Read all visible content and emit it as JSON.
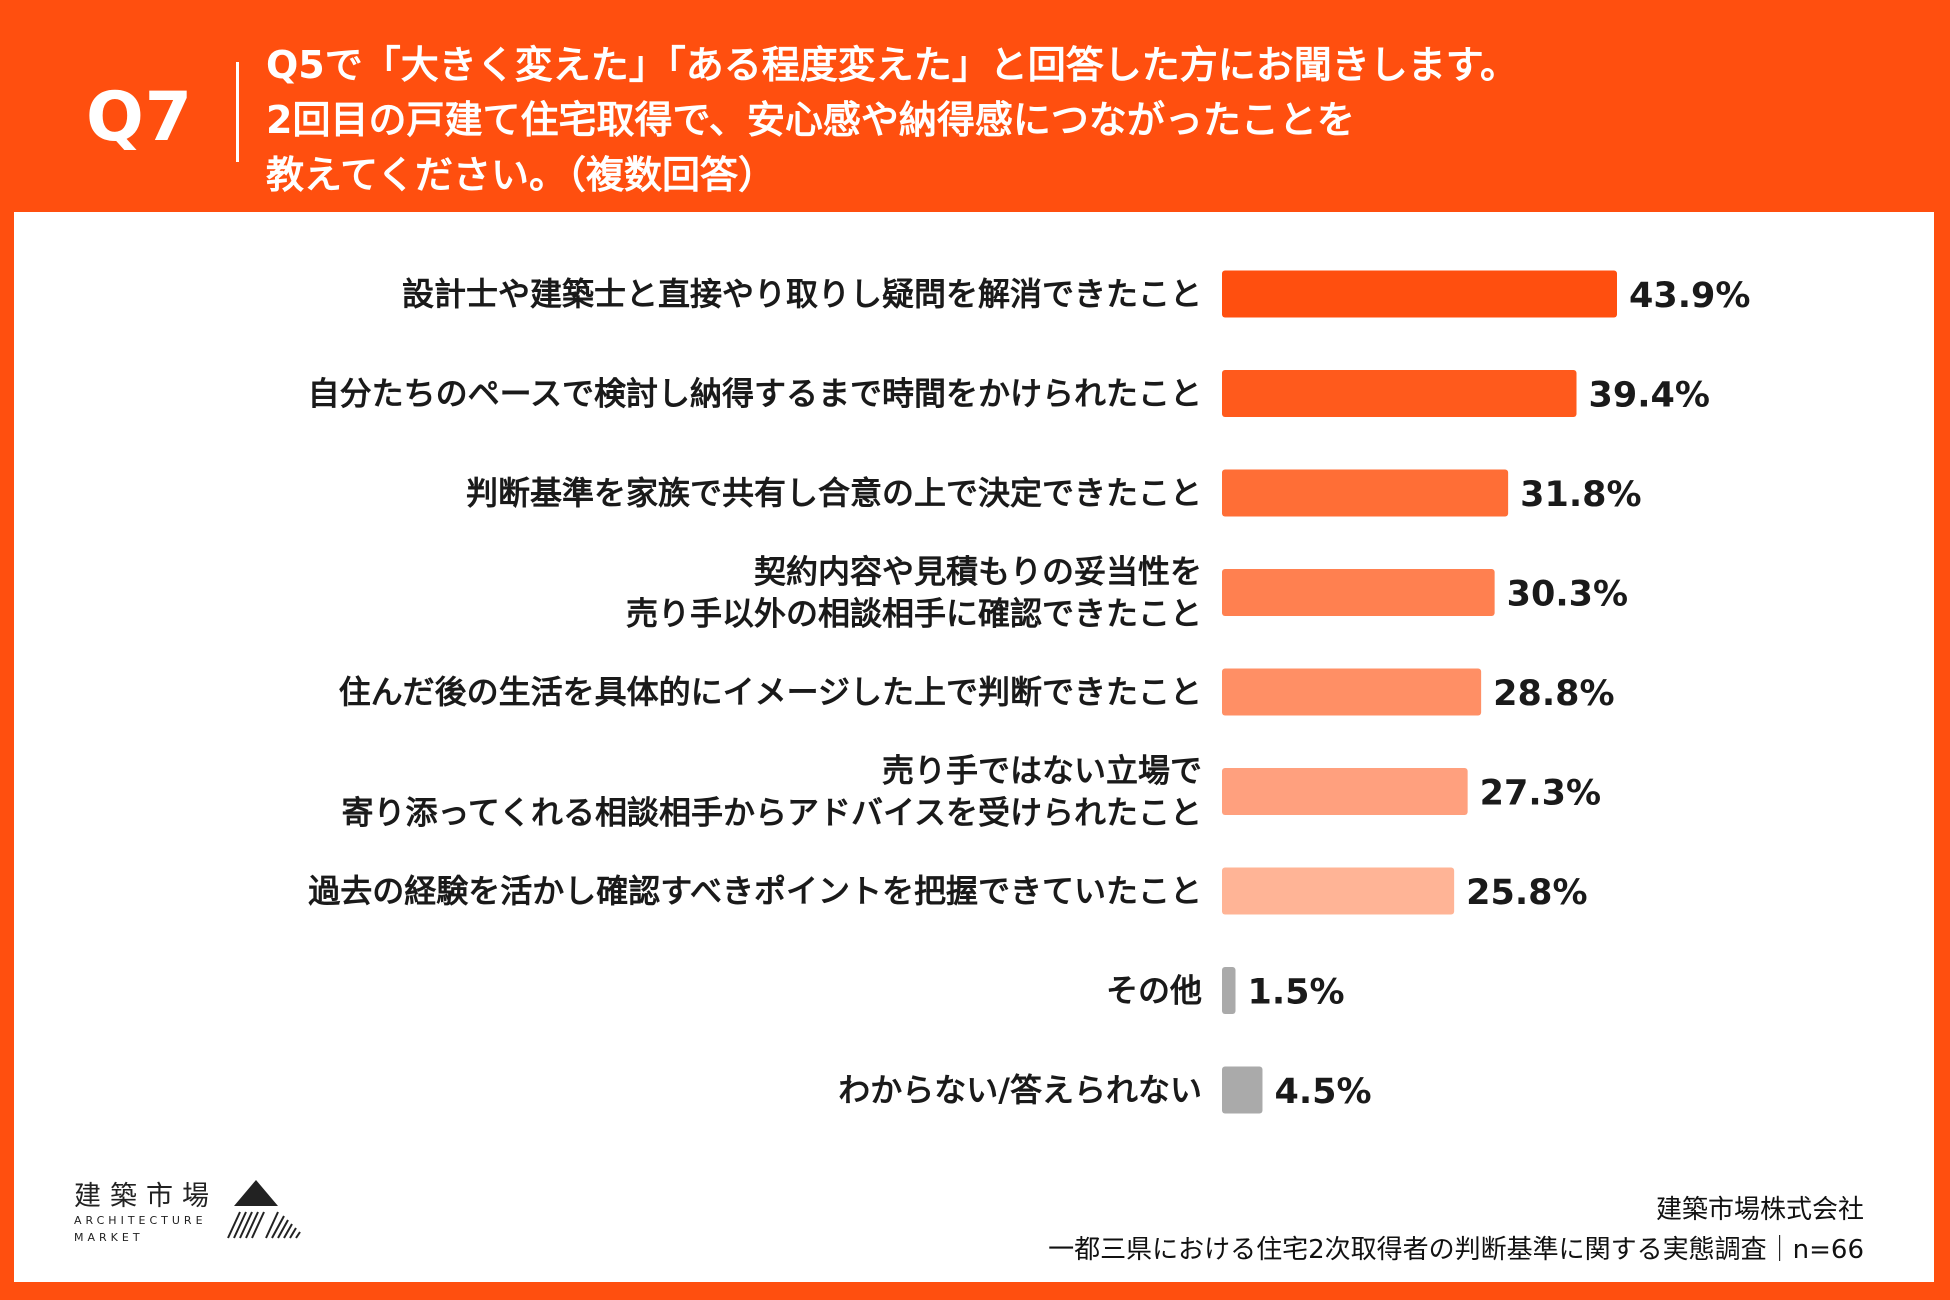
{
  "header": {
    "question_number": "Q7",
    "lines": [
      "Q5で「大きく変えた」「ある程度変えた」と回答した方にお聞きします。",
      "2回目の戸建て住宅取得で、安心感や納得感につながったことを",
      "教えてください。（複数回答）"
    ]
  },
  "colors": {
    "background": "#FF4F0F",
    "panel": "#FFFFFF",
    "text": "#1A1A1A",
    "grey_bar": "#AAAAAA"
  },
  "chart_data": {
    "type": "bar",
    "orientation": "horizontal",
    "title": "",
    "xlabel": "",
    "ylabel": "",
    "xlim": [
      0,
      43.9
    ],
    "grid": false,
    "legend": "none",
    "unit": "%",
    "categories": [
      [
        "設計士や建築士と直接やり取りし疑問を解消できたこと"
      ],
      [
        "自分たちのペースで検討し納得するまで時間をかけられたこと"
      ],
      [
        "判断基準を家族で共有し合意の上で決定できたこと"
      ],
      [
        "契約内容や見積もりの妥当性を",
        "売り手以外の相談相手に確認できたこと"
      ],
      [
        "住んだ後の生活を具体的にイメージした上で判断できたこと"
      ],
      [
        "売り手ではない立場で",
        "寄り添ってくれる相談相手からアドバイスを受けられたこと"
      ],
      [
        "過去の経験を活かし確認すべきポイントを把握できていたこと"
      ],
      [
        "その他"
      ],
      [
        "わからない/答えられない"
      ]
    ],
    "values": [
      43.9,
      39.4,
      31.8,
      30.3,
      28.8,
      27.3,
      25.8,
      1.5,
      4.5
    ],
    "value_labels": [
      "43.9%",
      "39.4%",
      "31.8%",
      "30.3%",
      "28.8%",
      "27.3%",
      "25.8%",
      "1.5%",
      "4.5%"
    ],
    "bar_colors": [
      "#FF4F0F",
      "#FF5A1C",
      "#FF6E36",
      "#FF8050",
      "#FF8F65",
      "#FFA07E",
      "#FFB496",
      "#AAAAAA",
      "#AAAAAA"
    ]
  },
  "logo": {
    "name": "建築市場",
    "english_line1": "ARCHITECTURE",
    "english_line2": "MARKET"
  },
  "footer": {
    "company": "建築市場株式会社",
    "survey": "一都三県における住宅2次取得者の判断基準に関する実態調査｜n=66"
  }
}
